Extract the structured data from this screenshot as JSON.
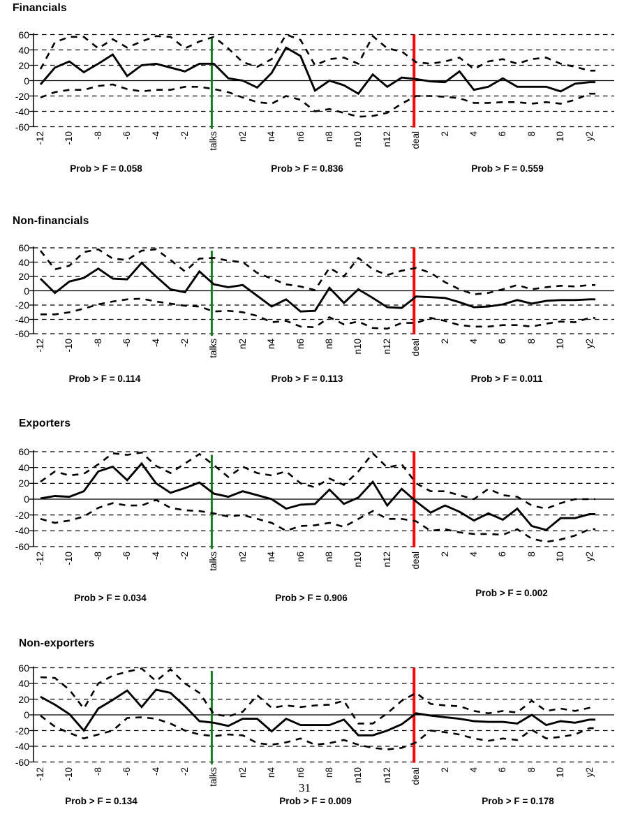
{
  "page": {
    "page_number": "31"
  },
  "colors": {
    "talks_line_green": "#1a7a1e",
    "deal_line_red": "#f90606",
    "series_black": "#000000",
    "background": "#ffffff"
  },
  "axis": {
    "ylim": [
      -60,
      60
    ],
    "y_ticks": [
      60,
      40,
      20,
      0,
      -20,
      -40,
      -60
    ],
    "x_tick_labels": [
      "-12",
      "-10",
      "-8",
      "-6",
      "-4",
      "-2",
      "talks",
      "n2",
      "n4",
      "n6",
      "n8",
      "n10",
      "n12",
      "deal",
      "2",
      "4",
      "6",
      "8",
      "10",
      "y2"
    ],
    "x_tick_point_indices": [
      0,
      2,
      4,
      6,
      8,
      10,
      12,
      14,
      16,
      18,
      20,
      22,
      24,
      26,
      28,
      30,
      32,
      34,
      36,
      38
    ],
    "n_points": 39,
    "talks_line_index": 12,
    "deal_line_index": 26,
    "grid": "dashed horizontal at every 20, solid zero line"
  },
  "chart_data": [
    {
      "type": "line",
      "title": "Financials",
      "prob_labels": [
        "Prob > F = 0.058",
        "Prob > F = 0.836",
        "Prob > F = 0.559"
      ],
      "series": [
        {
          "name": "mean",
          "style": "solid",
          "values": [
            -5,
            17,
            25,
            11,
            22,
            34,
            6,
            20,
            22,
            17,
            12,
            22,
            22,
            3,
            0,
            -9,
            10,
            43,
            32,
            -13,
            0,
            -6,
            -17,
            8,
            -8,
            4,
            2,
            -1,
            -2,
            12,
            -12,
            -8,
            3,
            -8,
            -8,
            -8,
            -14,
            -4,
            -2
          ]
        },
        {
          "name": "upper_band",
          "style": "dashed",
          "values": [
            15,
            50,
            57,
            57,
            42,
            54,
            43,
            51,
            58,
            57,
            42,
            51,
            57,
            42,
            24,
            18,
            28,
            60,
            53,
            20,
            28,
            30,
            22,
            58,
            42,
            38,
            24,
            22,
            25,
            30,
            15,
            25,
            28,
            22,
            28,
            30,
            22,
            18,
            13
          ]
        },
        {
          "name": "lower_band",
          "style": "dashed",
          "values": [
            -22,
            -15,
            -12,
            -12,
            -7,
            -5,
            -11,
            -14,
            -12,
            -12,
            -8,
            -8,
            -11,
            -15,
            -22,
            -28,
            -30,
            -20,
            -25,
            -40,
            -37,
            -42,
            -47,
            -46,
            -42,
            -30,
            -20,
            -20,
            -21,
            -23,
            -29,
            -29,
            -28,
            -28,
            -30,
            -28,
            -30,
            -25,
            -17
          ]
        }
      ]
    },
    {
      "type": "line",
      "title": "Non-financials",
      "prob_labels": [
        "Prob > F = 0.114",
        "Prob > F = 0.113",
        "Prob > F = 0.011"
      ],
      "series": [
        {
          "name": "mean",
          "style": "solid",
          "values": [
            17,
            -3,
            13,
            18,
            31,
            17,
            16,
            39,
            20,
            2,
            -2,
            27,
            9,
            5,
            8,
            -7,
            -22,
            -12,
            -29,
            -28,
            4,
            -17,
            2,
            -10,
            -23,
            -24,
            -8,
            -9,
            -10,
            -16,
            -23,
            -22,
            -19,
            -13,
            -18,
            -14,
            -13,
            -13,
            -12
          ]
        },
        {
          "name": "upper_band",
          "style": "dashed",
          "values": [
            56,
            30,
            35,
            54,
            58,
            45,
            43,
            56,
            58,
            43,
            27,
            45,
            46,
            42,
            40,
            25,
            17,
            9,
            6,
            1,
            32,
            20,
            46,
            30,
            22,
            28,
            32,
            25,
            12,
            2,
            -5,
            -3,
            2,
            8,
            2,
            5,
            7,
            6,
            8
          ]
        },
        {
          "name": "lower_band",
          "style": "dashed",
          "values": [
            -33,
            -33,
            -30,
            -25,
            -19,
            -15,
            -12,
            -11,
            -15,
            -18,
            -21,
            -22,
            -29,
            -28,
            -30,
            -35,
            -44,
            -42,
            -50,
            -51,
            -37,
            -47,
            -43,
            -52,
            -53,
            -45,
            -45,
            -38,
            -42,
            -48,
            -50,
            -50,
            -48,
            -48,
            -50,
            -46,
            -43,
            -44,
            -38
          ]
        }
      ]
    },
    {
      "type": "line",
      "title": "Exporters",
      "prob_labels": [
        "Prob > F = 0.034",
        "Prob > F = 0.906",
        "Prob > F = 0.002"
      ],
      "series": [
        {
          "name": "mean",
          "style": "solid",
          "values": [
            1,
            4,
            3,
            10,
            35,
            41,
            24,
            45,
            20,
            8,
            14,
            21,
            7,
            3,
            10,
            5,
            0,
            -12,
            -7,
            -6,
            12,
            -6,
            2,
            22,
            -8,
            13,
            -3,
            -17,
            -8,
            -16,
            -27,
            -18,
            -26,
            -12,
            -34,
            -39,
            -24,
            -24,
            -19
          ]
        },
        {
          "name": "upper_band",
          "style": "dashed",
          "values": [
            22,
            35,
            30,
            32,
            44,
            58,
            56,
            59,
            42,
            33,
            45,
            57,
            43,
            28,
            41,
            33,
            30,
            35,
            20,
            15,
            26,
            18,
            35,
            58,
            40,
            44,
            20,
            10,
            10,
            5,
            0,
            13,
            5,
            3,
            -8,
            -12,
            -5,
            0,
            0
          ]
        },
        {
          "name": "lower_band",
          "style": "dashed",
          "values": [
            -25,
            -30,
            -27,
            -22,
            -11,
            -5,
            -8,
            -8,
            -1,
            -11,
            -14,
            -15,
            -18,
            -22,
            -20,
            -25,
            -30,
            -40,
            -34,
            -33,
            -30,
            -35,
            -25,
            -15,
            -25,
            -25,
            -28,
            -40,
            -38,
            -42,
            -44,
            -44,
            -45,
            -38,
            -50,
            -54,
            -51,
            -46,
            -38
          ]
        }
      ]
    },
    {
      "type": "line",
      "title": "Non-exporters",
      "prob_labels": [
        "Prob > F = 0.134",
        "Prob > F = 0.009",
        "Prob > F = 0.178"
      ],
      "series": [
        {
          "name": "mean",
          "style": "solid",
          "values": [
            23,
            13,
            1,
            -20,
            8,
            19,
            31,
            10,
            32,
            28,
            11,
            -8,
            -10,
            -14,
            -5,
            -5,
            -21,
            -5,
            -13,
            -13,
            -13,
            -6,
            -26,
            -26,
            -20,
            -12,
            2,
            -1,
            -3,
            -5,
            -8,
            -9,
            -9,
            -11,
            0,
            -13,
            -8,
            -10,
            -6
          ]
        },
        {
          "name": "upper_band",
          "style": "dashed",
          "values": [
            48,
            47,
            32,
            8,
            40,
            50,
            55,
            59,
            43,
            58,
            40,
            28,
            1,
            -2,
            4,
            25,
            9,
            12,
            10,
            12,
            13,
            18,
            -11,
            -11,
            2,
            18,
            28,
            14,
            12,
            11,
            5,
            2,
            5,
            3,
            18,
            5,
            8,
            5,
            9
          ]
        },
        {
          "name": "lower_band",
          "style": "dashed",
          "values": [
            -1,
            -15,
            -23,
            -30,
            -25,
            -20,
            -4,
            -3,
            -5,
            -11,
            -20,
            -25,
            -27,
            -25,
            -26,
            -36,
            -38,
            -35,
            -30,
            -38,
            -36,
            -32,
            -38,
            -42,
            -44,
            -42,
            -35,
            -20,
            -22,
            -25,
            -30,
            -33,
            -30,
            -32,
            -19,
            -30,
            -28,
            -25,
            -17
          ]
        }
      ]
    }
  ]
}
